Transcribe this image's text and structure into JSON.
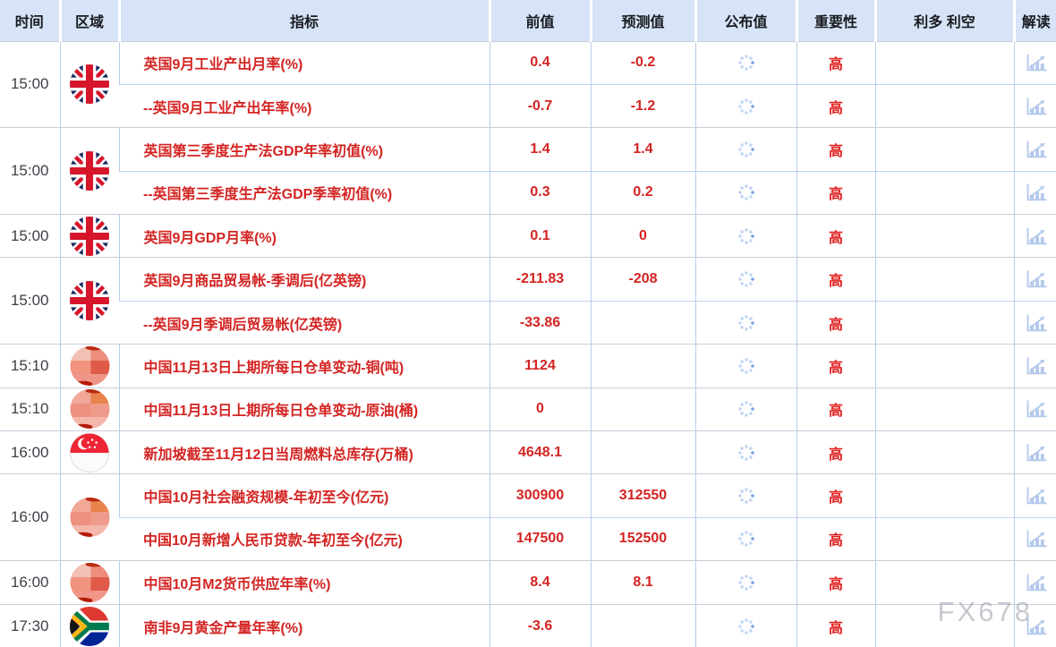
{
  "watermark": "FX678",
  "colors": {
    "header_bg": "#d7e3f6",
    "grid_blue": "#b6cdea",
    "group_border": "#c7cedb",
    "indicator_red": "#d32422",
    "importance_red": "#e01f1f",
    "icon_blue": "#b3c9ec",
    "spinner_blue": "#c3d7f3",
    "spinner_accent": "#78a3e2",
    "watermark_gray": "#989ea8"
  },
  "icons": {
    "published_pending": "loading-spinner-icon",
    "explain": "bar-chart-icon"
  },
  "table": {
    "columns": [
      {
        "key": "time",
        "label": "时间"
      },
      {
        "key": "region",
        "label": "区域"
      },
      {
        "key": "indicator",
        "label": "指标"
      },
      {
        "key": "previous",
        "label": "前值"
      },
      {
        "key": "forecast",
        "label": "预测值"
      },
      {
        "key": "published",
        "label": "公布值"
      },
      {
        "key": "importance",
        "label": "重要性"
      },
      {
        "key": "bull_bear",
        "label": "利多 利空"
      },
      {
        "key": "explain",
        "label": "解读"
      }
    ],
    "groups": [
      {
        "time": "15:00",
        "flag": "uk",
        "rows": [
          {
            "indicator": "英国9月工业产出月率(%)",
            "previous": "0.4",
            "forecast": "-0.2",
            "importance": "高"
          },
          {
            "indicator": "--英国9月工业产出年率(%)",
            "previous": "-0.7",
            "forecast": "-1.2",
            "importance": "高"
          }
        ]
      },
      {
        "time": "15:00",
        "flag": "uk",
        "rows": [
          {
            "indicator": "英国第三季度生产法GDP年率初值(%)",
            "previous": "1.4",
            "forecast": "1.4",
            "importance": "高"
          },
          {
            "indicator": "--英国第三季度生产法GDP季率初值(%)",
            "previous": "0.3",
            "forecast": "0.2",
            "importance": "高"
          }
        ]
      },
      {
        "time": "15:00",
        "flag": "uk",
        "rows": [
          {
            "indicator": "英国9月GDP月率(%)",
            "previous": "0.1",
            "forecast": "0",
            "importance": "高"
          }
        ]
      },
      {
        "time": "15:00",
        "flag": "uk",
        "rows": [
          {
            "indicator": "英国9月商品贸易帐-季调后(亿英镑)",
            "previous": "-211.83",
            "forecast": "-208",
            "importance": "高"
          },
          {
            "indicator": "--英国9月季调后贸易帐(亿英镑)",
            "previous": "-33.86",
            "forecast": "",
            "importance": "高"
          }
        ]
      },
      {
        "time": "15:10",
        "flag": "china-censored",
        "flag_variant": "red",
        "rows": [
          {
            "indicator": "中国11月13日上期所每日仓单变动-铜(吨)",
            "previous": "1124",
            "forecast": "",
            "importance": "高"
          }
        ]
      },
      {
        "time": "15:10",
        "flag": "china-censored",
        "flag_variant": "orange",
        "rows": [
          {
            "indicator": "中国11月13日上期所每日仓单变动-原油(桶)",
            "previous": "0",
            "forecast": "",
            "importance": "高"
          }
        ]
      },
      {
        "time": "16:00",
        "flag": "singapore",
        "rows": [
          {
            "indicator": "新加坡截至11月12日当周燃料总库存(万桶)",
            "previous": "4648.1",
            "forecast": "",
            "importance": "高"
          }
        ]
      },
      {
        "time": "16:00",
        "flag": "china-censored",
        "flag_variant": "orange",
        "rows": [
          {
            "indicator": "中国10月社会融资规模-年初至今(亿元)",
            "previous": "300900",
            "forecast": "312550",
            "importance": "高"
          },
          {
            "indicator": "中国10月新增人民币贷款-年初至今(亿元)",
            "previous": "147500",
            "forecast": "152500",
            "importance": "高"
          }
        ]
      },
      {
        "time": "16:00",
        "flag": "china-censored",
        "flag_variant": "red",
        "rows": [
          {
            "indicator": "中国10月M2货币供应年率(%)",
            "previous": "8.4",
            "forecast": "8.1",
            "importance": "高"
          }
        ]
      },
      {
        "time": "17:30",
        "flag": "south-africa",
        "rows": [
          {
            "indicator": "南非9月黄金产量年率(%)",
            "previous": "-3.6",
            "forecast": "",
            "importance": "高"
          }
        ]
      }
    ]
  }
}
